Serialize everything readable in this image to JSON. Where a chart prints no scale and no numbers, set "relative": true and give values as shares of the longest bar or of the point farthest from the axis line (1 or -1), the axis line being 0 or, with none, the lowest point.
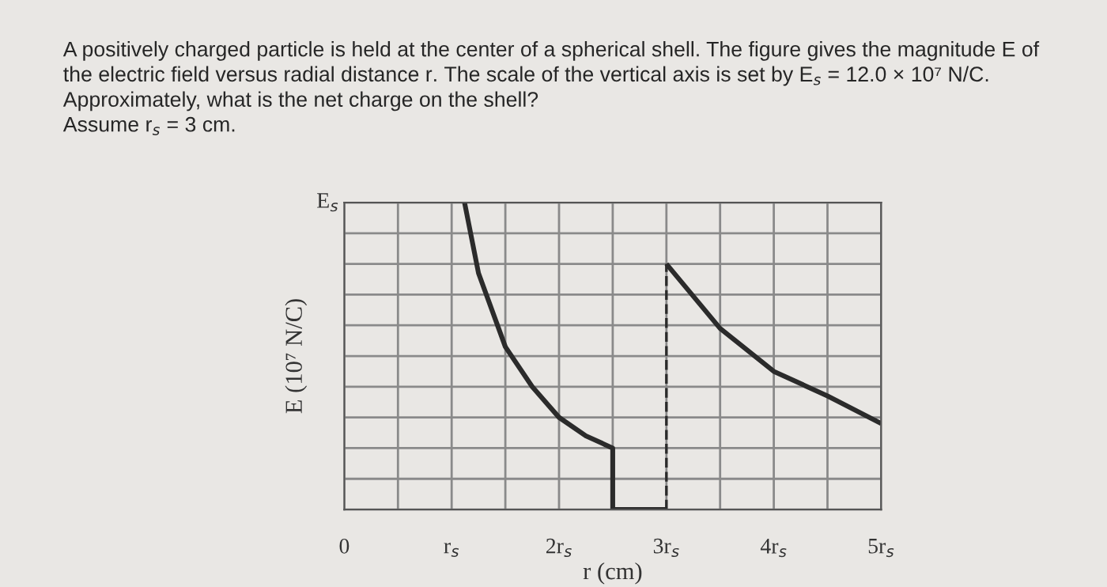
{
  "chart_data": {
    "type": "line",
    "title": "A positively charged particle is held at the center of a spherical shell. The figure gives the magnitude E of\nthe electric field versus radial distance r. The scale of the vertical axis is set by E$_{s}$ = 12.0 × 10⁷ N/C.\nApproximately, what is the net charge on the shell?\nAssume r$_{s}$ = 3 cm.",
    "xlabel": "r (cm)",
    "ylabel": "E (10⁷ N/C)",
    "annotations": [
      "E$_{s}$"
    ],
    "relative": true,
    "series": [
      {
        "color": "#2b2b2b",
        "line_style": "solid",
        "x": [
          1.12,
          1.25,
          1.5,
          1.75,
          2.0,
          2.25,
          2.5,
          2.5,
          3.0
        ],
        "values": [
          1,
          0.77,
          0.53,
          0.4,
          0.3,
          0.24,
          0.2,
          0,
          0
        ]
      },
      {
        "color": "#2b2b2b",
        "line_style": "dashed",
        "x": [
          3.0,
          3.0
        ],
        "values": [
          0,
          0.8
        ]
      },
      {
        "color": "#2b2b2b",
        "line_style": "solid",
        "x": [
          3.0,
          3.5,
          4.0,
          4.5,
          5.0
        ],
        "values": [
          0.8,
          0.59,
          0.45,
          0.37,
          0.28
        ]
      }
    ],
    "xlim": [
      0,
      5
    ],
    "xticks": [
      0,
      {
        "value": 0.5,
        "label": null
      },
      {
        "value": 1,
        "label": "r$_{s}$"
      },
      {
        "value": 1.5,
        "label": null
      },
      {
        "value": 2,
        "label": "2r$_{s}$"
      },
      {
        "value": 2.5,
        "label": null
      },
      {
        "value": 3,
        "label": "3r$_{s}$"
      },
      {
        "value": 3.5,
        "label": null
      },
      {
        "value": 4,
        "label": "4r$_{s}$"
      },
      {
        "value": 4.5,
        "label": null
      },
      {
        "value": 5,
        "label": "5r$_{s}$"
      }
    ],
    "grid": true
  }
}
